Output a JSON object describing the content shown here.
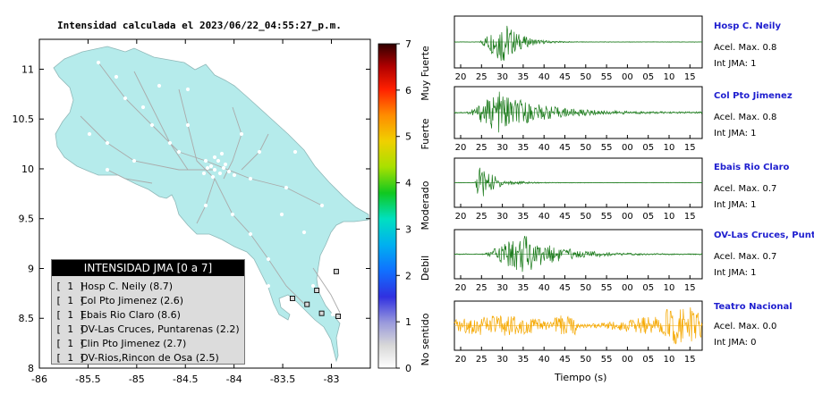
{
  "map": {
    "title": "Intensidad calculada el 2023/06/22_04:55:27_p.m.",
    "x_ticks": [
      "-86",
      "-85.5",
      "-85",
      "-84.5",
      "-84",
      "-83.5",
      "-83"
    ],
    "y_ticks": [
      "11",
      "10.5",
      "10",
      "9.5",
      "9",
      "8.5",
      "8"
    ],
    "legend_title": "INTENSIDAD JMA [0 a 7]",
    "legend_items": [
      {
        "int": "[ 1 ]",
        "name": "Hosp C. Neily (8.7)"
      },
      {
        "int": "[ 1 ]",
        "name": "Col Pto Jimenez (2.6)"
      },
      {
        "int": "[ 1 ]",
        "name": "Ebais Rio Claro (8.6)"
      },
      {
        "int": "[ 1 ]",
        "name": "OV-Las Cruces, Puntarenas (2.2)"
      },
      {
        "int": "[ 1 ]",
        "name": "Clin Pto Jimenez (2.7)"
      },
      {
        "int": "[ 1 ]",
        "name": "OV-Rios,Rincon de Osa (2.5)"
      }
    ]
  },
  "colorbar": {
    "ticks": [
      "0",
      "1",
      "2",
      "3",
      "4",
      "5",
      "6",
      "7"
    ],
    "labels": [
      "No sentido",
      "Debil",
      "Moderado",
      "Fuerte",
      "Muy Fuerte"
    ]
  },
  "stations": [
    {
      "name": "Hosp C. Neily",
      "accel": "Acel. Max. 0.8",
      "jma": "Int JMA: 1",
      "ticks": [
        "20",
        "25",
        "30",
        "35",
        "40",
        "45",
        "50",
        "55",
        "00",
        "05",
        "10",
        "15"
      ],
      "color": "#1a7a1a"
    },
    {
      "name": "Col Pto Jimenez",
      "accel": "Acel. Max. 0.8",
      "jma": "Int JMA: 1",
      "ticks": [
        "20",
        "25",
        "30",
        "35",
        "40",
        "45",
        "50",
        "55",
        "00",
        "05",
        "10",
        "15"
      ],
      "color": "#1a7a1a"
    },
    {
      "name": "Ebais Rio Claro",
      "accel": "Acel. Max. 0.7",
      "jma": "Int JMA: 1",
      "ticks": [
        "20",
        "25",
        "30",
        "35",
        "40",
        "45",
        "50",
        "55",
        "00",
        "05",
        "10",
        "15"
      ],
      "color": "#1a7a1a"
    },
    {
      "name": "OV-Las Cruces, Puntar",
      "accel": "Acel. Max. 0.7",
      "jma": "Int JMA: 1",
      "ticks": [
        "20",
        "25",
        "30",
        "35",
        "40",
        "45",
        "50",
        "55",
        "00",
        "05",
        "10",
        "15"
      ],
      "color": "#1a7a1a"
    },
    {
      "name": "Teatro Nacional",
      "accel": "Acel. Max. 0.0",
      "jma": "Int JMA: 0",
      "ticks": [
        "20",
        "25",
        "30",
        "35",
        "40",
        "45",
        "50",
        "55",
        "00",
        "05",
        "10",
        "15"
      ],
      "color": "#f5a800"
    }
  ],
  "time_axis_label": "Tiempo (s)",
  "chart_data": [
    {
      "type": "scatter",
      "title": "Intensidad calculada el 2023/06/22_04:55:27_p.m.",
      "xlim": [
        -86,
        -82.6
      ],
      "ylim": [
        8,
        11.3
      ],
      "series": [
        {
          "name": "",
          "x": [
            -82.95,
            -83.15,
            -83.25,
            -82.93,
            -83.4,
            -83.1
          ],
          "y": [
            8.97,
            8.78,
            8.64,
            8.52,
            8.7,
            8.55
          ]
        }
      ]
    },
    {
      "type": "line",
      "title": "Hosp C. Neily",
      "xlabel": "Tiempo (s)",
      "ylim": [
        -0.8,
        0.8
      ]
    },
    {
      "type": "line",
      "title": "Col Pto Jimenez",
      "xlabel": "Tiempo (s)",
      "ylim": [
        -0.8,
        0.8
      ]
    },
    {
      "type": "line",
      "title": "Ebais Rio Claro",
      "xlabel": "Tiempo (s)",
      "ylim": [
        -0.7,
        0.7
      ]
    },
    {
      "type": "line",
      "title": "OV-Las Cruces, Puntar",
      "xlabel": "Tiempo (s)",
      "ylim": [
        -0.7,
        0.7
      ]
    },
    {
      "type": "line",
      "title": "Teatro Nacional",
      "xlabel": "Tiempo (s)",
      "ylim": [
        -0.05,
        0.05
      ]
    }
  ]
}
